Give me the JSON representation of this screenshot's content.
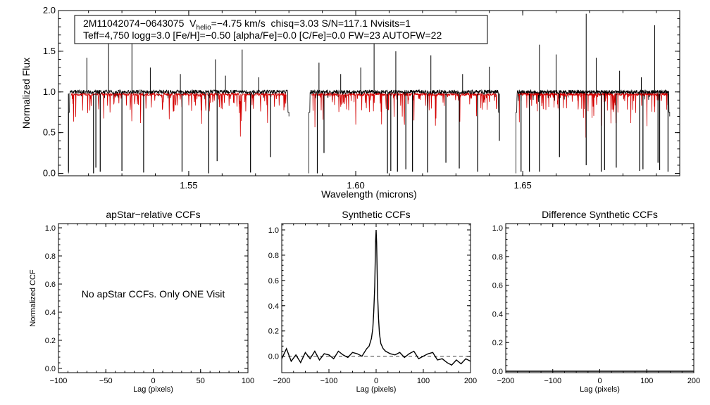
{
  "chart_data": [
    {
      "id": "spectrum",
      "type": "line",
      "title": "",
      "xlabel": "Wavelength (microns)",
      "ylabel": "Normalized Flux",
      "xlim": [
        1.511,
        1.697
      ],
      "ylim": [
        -0.03,
        2.0
      ],
      "xticks": [
        1.55,
        1.6,
        1.65
      ],
      "xtick_labels": [
        "1.55",
        "1.60",
        "1.65"
      ],
      "yticks": [
        0.0,
        0.5,
        1.0,
        1.5,
        2.0
      ],
      "ytick_labels": [
        "0.0",
        "0.5",
        "1.0",
        "1.5",
        "2.0"
      ],
      "info": {
        "id": "2M11042074−0643075",
        "v_main": "V",
        "v_sub": "helio",
        "v_value": "=−4.75 km/s",
        "rest_line1": "chisq=3.03  S/N=117.1  Nvisits=1",
        "line2": "Teff=4,750 logg=3.0 [Fe/H]=−0.50 [alpha/Fe]=0.0 [C/Fe]=0.0 FW=23 AUTOFW=22"
      },
      "continuum": 0.98,
      "chips": [
        [
          1.514,
          1.58
        ],
        [
          1.586,
          1.643
        ],
        [
          1.648,
          1.694
        ]
      ],
      "emission_spikes": [
        [
          1.5195,
          1.42
        ],
        [
          1.526,
          1.72
        ],
        [
          1.533,
          1.78
        ],
        [
          1.5385,
          1.3
        ],
        [
          1.5475,
          1.22
        ],
        [
          1.558,
          1.4
        ],
        [
          1.561,
          1.2
        ],
        [
          1.566,
          1.52
        ],
        [
          1.571,
          1.18
        ],
        [
          1.589,
          1.36
        ],
        [
          1.5955,
          1.22
        ],
        [
          1.6015,
          1.3
        ],
        [
          1.6055,
          1.62
        ],
        [
          1.612,
          1.5
        ],
        [
          1.6225,
          1.45
        ],
        [
          1.632,
          1.22
        ],
        [
          1.64,
          1.31
        ],
        [
          1.655,
          1.58
        ],
        [
          1.66,
          1.46
        ],
        [
          1.669,
          1.96
        ],
        [
          1.672,
          1.42
        ],
        [
          1.679,
          1.26
        ],
        [
          1.6895,
          1.82
        ],
        [
          1.6855,
          1.18
        ]
      ],
      "absorption_spikes": [
        [
          1.514,
          0.02
        ],
        [
          1.5215,
          0.0
        ],
        [
          1.5222,
          0.07
        ],
        [
          1.5235,
          0.02
        ],
        [
          1.53,
          0.03
        ],
        [
          1.5365,
          0.01
        ],
        [
          1.548,
          0.02
        ],
        [
          1.556,
          0.0
        ],
        [
          1.5585,
          0.15
        ],
        [
          1.5685,
          0.01
        ],
        [
          1.5745,
          0.2
        ],
        [
          1.5885,
          0.0
        ],
        [
          1.5905,
          0.25
        ],
        [
          1.6095,
          0.0
        ],
        [
          1.6105,
          0.03
        ],
        [
          1.6125,
          0.02
        ],
        [
          1.615,
          0.05
        ],
        [
          1.617,
          0.02
        ],
        [
          1.6215,
          0.01
        ],
        [
          1.627,
          0.13
        ],
        [
          1.631,
          0.06
        ],
        [
          1.6365,
          0.02
        ],
        [
          1.643,
          0.4
        ],
        [
          1.6495,
          0.02
        ],
        [
          1.652,
          0.02
        ],
        [
          1.655,
          0.02
        ],
        [
          1.661,
          0.2
        ],
        [
          1.669,
          0.1
        ],
        [
          1.6735,
          0.02
        ],
        [
          1.6745,
          0.04
        ],
        [
          1.678,
          0.07
        ],
        [
          1.685,
          0.03
        ],
        [
          1.686,
          0.05
        ],
        [
          1.6905,
          0.13
        ],
        [
          1.691,
          0.04
        ],
        [
          1.6935,
          0.02
        ]
      ],
      "series": [
        {
          "name": "Observed spectrum",
          "color": "#000000"
        },
        {
          "name": "Synthetic model",
          "color": "#d40000"
        }
      ]
    },
    {
      "id": "apstar",
      "type": "line",
      "title": "apStar−relative CCFs",
      "xlabel": "Lag (pixels)",
      "ylabel": "Normalized CCF",
      "xlim": [
        -100,
        100
      ],
      "ylim": [
        -0.03,
        1.03
      ],
      "xticks": [
        -100,
        -50,
        0,
        50,
        100
      ],
      "xtick_labels": [
        "−100",
        "−50",
        "0",
        "50",
        "100"
      ],
      "yticks": [
        0.0,
        0.2,
        0.4,
        0.6,
        0.8,
        1.0
      ],
      "ytick_labels": [
        "0.0",
        "0.2",
        "0.4",
        "0.6",
        "0.8",
        "1.0"
      ],
      "annotation": "No apStar CCFs.  Only ONE Visit"
    },
    {
      "id": "synthetic",
      "type": "line",
      "title": "Synthetic CCFs",
      "xlabel": "Lag (pixels)",
      "ylabel": "",
      "xlim": [
        -200,
        200
      ],
      "ylim": [
        -0.13,
        1.05
      ],
      "xticks": [
        -200,
        -100,
        0,
        100,
        200
      ],
      "xtick_labels": [
        "−200",
        "−100",
        "0",
        "100",
        "200"
      ],
      "yticks": [
        0.0,
        0.2,
        0.4,
        0.6,
        0.8,
        1.0
      ],
      "ytick_labels": [
        "0.0",
        "0.2",
        "0.4",
        "0.6",
        "0.8",
        "1.0"
      ],
      "series": [
        {
          "name": "CCF",
          "x": [
            -200,
            -190,
            -180,
            -170,
            -160,
            -150,
            -140,
            -130,
            -120,
            -110,
            -100,
            -90,
            -80,
            -70,
            -60,
            -50,
            -40,
            -30,
            -20,
            -15,
            -10,
            -7,
            -5,
            -3,
            -2,
            -1,
            0,
            1,
            2,
            3,
            5,
            7,
            10,
            15,
            20,
            30,
            40,
            50,
            60,
            70,
            80,
            90,
            100,
            110,
            120,
            130,
            140,
            150,
            160,
            170,
            180,
            190,
            200
          ],
          "y": [
            -0.02,
            0.06,
            -0.04,
            0.01,
            -0.05,
            0.03,
            -0.02,
            0.04,
            -0.03,
            0.02,
            0.01,
            -0.02,
            0.04,
            0.01,
            -0.01,
            0.03,
            0.02,
            0.0,
            0.06,
            0.08,
            0.14,
            0.22,
            0.35,
            0.55,
            0.75,
            0.92,
            1.0,
            0.9,
            0.72,
            0.5,
            0.3,
            0.18,
            0.1,
            0.06,
            0.04,
            0.02,
            0.01,
            0.03,
            -0.01,
            0.02,
            0.04,
            -0.02,
            0.0,
            0.02,
            0.03,
            -0.03,
            -0.02,
            -0.05,
            -0.07,
            -0.03,
            -0.06,
            -0.02,
            -0.04
          ]
        },
        {
          "name": "zero-line",
          "style": "dashed",
          "x": [
            -200,
            200
          ],
          "y": [
            0,
            0
          ]
        }
      ]
    },
    {
      "id": "difference",
      "type": "line",
      "title": "Difference Synthetic CCFs",
      "xlabel": "Lag (pixels)",
      "ylabel": "",
      "xlim": [
        -200,
        200
      ],
      "ylim": [
        -0.01,
        1.03
      ],
      "xticks": [
        -200,
        -100,
        0,
        100,
        200
      ],
      "xtick_labels": [
        "−200",
        "−100",
        "0",
        "100",
        "200"
      ],
      "yticks": [
        0.0,
        0.2,
        0.4,
        0.6,
        0.8,
        1.0
      ],
      "ytick_labels": [
        "0.0",
        "0.2",
        "0.4",
        "0.6",
        "0.8",
        "1.0"
      ],
      "series": [
        {
          "name": "difference-ccf",
          "x": [
            -200,
            200
          ],
          "y": [
            0,
            0
          ]
        }
      ]
    }
  ]
}
